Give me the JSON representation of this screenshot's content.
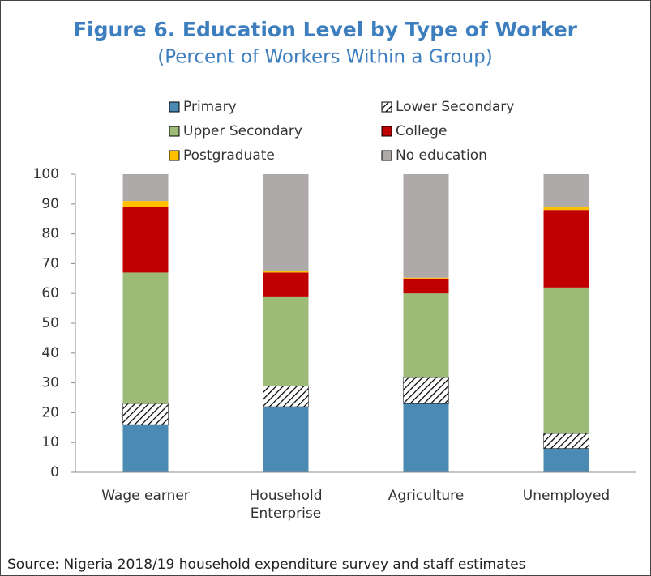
{
  "chart_data": {
    "type": "stacked_bar",
    "title": "Figure 6. Education Level by Type of Worker",
    "subtitle": "(Percent of Workers Within a Group)",
    "source": "Source:  Nigeria 2018/19 household expenditure survey and staff estimates",
    "categories": [
      "Wage earner",
      "Household Enterprise",
      "Agriculture",
      "Unemployed"
    ],
    "series": [
      {
        "name": "Primary",
        "color": "#4b8ab3",
        "values": [
          16,
          22,
          23,
          8
        ]
      },
      {
        "name": "Lower Secondary",
        "color": "#ffffff",
        "hatch": true,
        "values": [
          7,
          7,
          9,
          5
        ]
      },
      {
        "name": "Upper Secondary",
        "color": "#9bbb77",
        "values": [
          44,
          30,
          28,
          49
        ]
      },
      {
        "name": "College",
        "color": "#c00000",
        "values": [
          22,
          8,
          5,
          26
        ]
      },
      {
        "name": "Postgraduate",
        "color": "#ffc000",
        "values": [
          2,
          0.5,
          0.3,
          1
        ]
      },
      {
        "name": "No education",
        "color": "#aeaaaa",
        "values": [
          9,
          32.5,
          34.7,
          11
        ]
      }
    ],
    "ylim": [
      0,
      100
    ],
    "yticks": [
      0,
      10,
      20,
      30,
      40,
      50,
      60,
      70,
      80,
      90,
      100
    ]
  }
}
